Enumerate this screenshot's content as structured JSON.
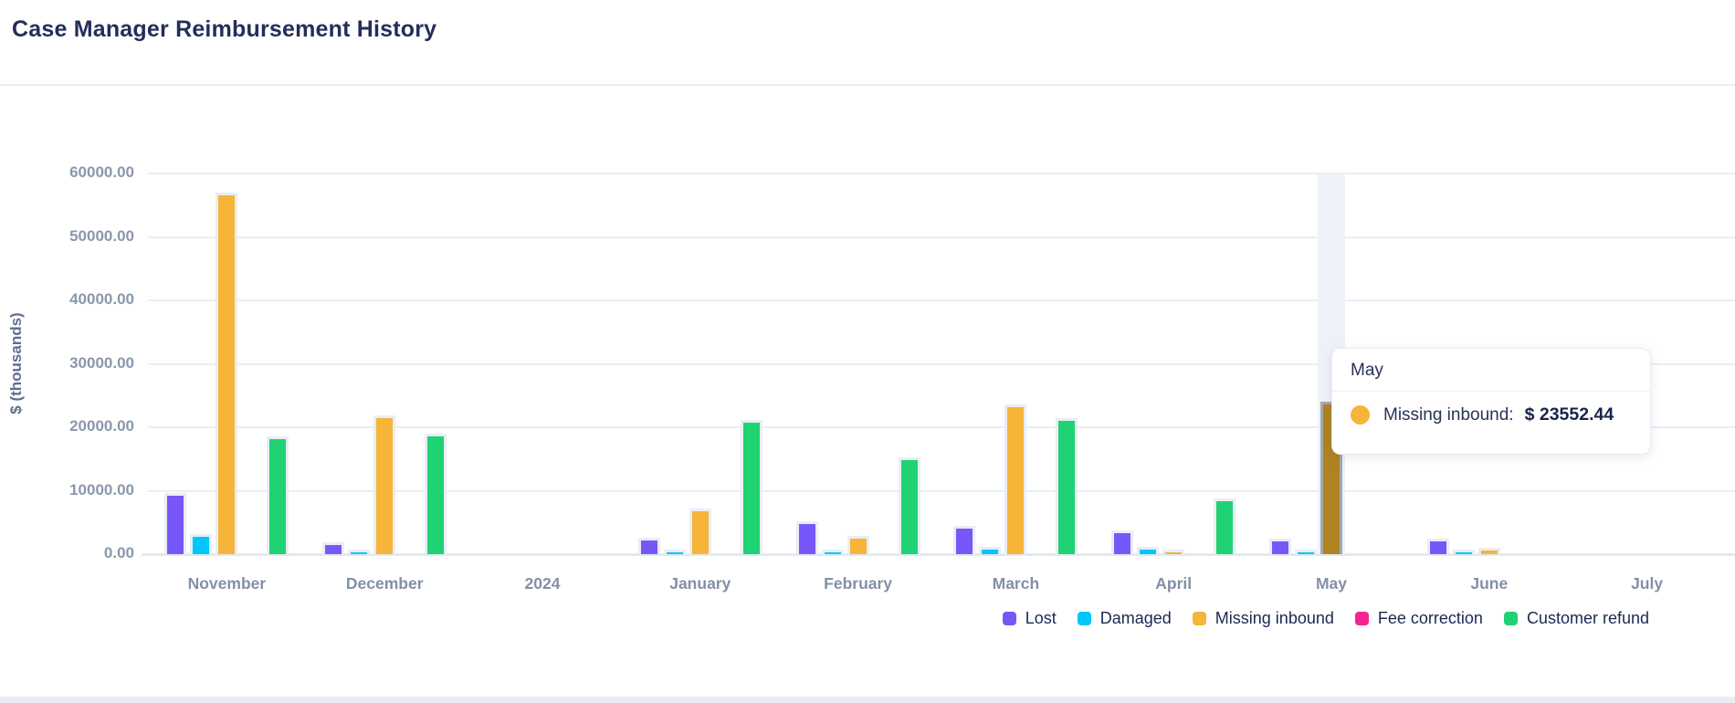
{
  "header": {
    "title": "Case Manager Reimbursement History"
  },
  "chart_data": {
    "type": "bar",
    "title": "Case Manager Reimbursement History",
    "xlabel": "",
    "ylabel": "$ (thousands)",
    "ylim": [
      0,
      60000
    ],
    "grid": true,
    "legend_position": "bottom-right",
    "y_ticks": [
      "60000.00",
      "50000.00",
      "40000.00",
      "30000.00",
      "20000.00",
      "10000.00",
      "0.00"
    ],
    "categories": [
      "November",
      "December",
      "2024",
      "January",
      "February",
      "March",
      "April",
      "May",
      "June",
      "July"
    ],
    "series": [
      {
        "name": "Lost",
        "color": "#7857F8",
        "values": [
          9200,
          1400,
          0,
          2200,
          4700,
          4100,
          3300,
          2000,
          1950,
          0
        ]
      },
      {
        "name": "Damaged",
        "color": "#00C6F9",
        "values": [
          2800,
          250,
          0,
          250,
          250,
          700,
          650,
          250,
          250,
          0
        ]
      },
      {
        "name": "Missing inbound",
        "color": "#F6B438",
        "values": [
          56500,
          21400,
          0,
          6700,
          2400,
          23200,
          250,
          23552.44,
          600,
          0
        ]
      },
      {
        "name": "Fee correction",
        "color": "#F4258E",
        "values": [
          0,
          0,
          0,
          0,
          0,
          0,
          0,
          0,
          0,
          0
        ]
      },
      {
        "name": "Customer refund",
        "color": "#1FD273",
        "values": [
          18100,
          18600,
          0,
          20700,
          14800,
          21000,
          8300,
          0,
          0,
          0
        ]
      }
    ],
    "highlight": {
      "category": "May",
      "series": "Missing inbound",
      "band_color": "#EEF2F8",
      "bar_fill": "#B08321",
      "bar_border": "#A7A7B1"
    }
  },
  "tooltip": {
    "title": "May",
    "row_label": "Missing inbound:",
    "row_value": "$ 23552.44",
    "dot_color": "#F6B438"
  }
}
